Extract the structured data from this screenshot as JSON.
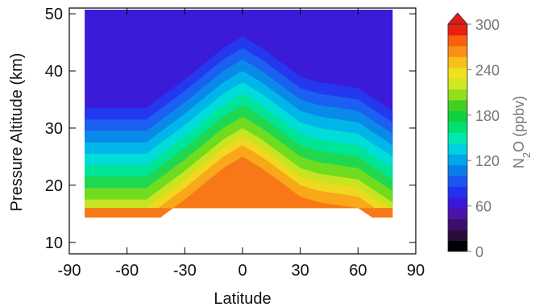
{
  "chart_data": {
    "type": "heatmap",
    "title": "",
    "xlabel": "Latitude",
    "ylabel": "Pressure Altitude (km)",
    "xlim": [
      -90,
      90
    ],
    "ylim": [
      8,
      51
    ],
    "xticks": [
      -90,
      -60,
      -30,
      0,
      30,
      60,
      90
    ],
    "yticks": [
      10,
      20,
      30,
      40,
      50
    ],
    "data_extent": {
      "lat": [
        -82,
        78
      ],
      "alt": [
        16,
        51
      ]
    },
    "colorbar": {
      "label_main": "N",
      "label_sub": "2",
      "label_rest": "O (ppbv)",
      "range": [
        0,
        300
      ],
      "ticks": [
        0,
        60,
        120,
        180,
        240,
        300
      ],
      "max_arrow": true,
      "colors": [
        "#000000",
        "#2a0d3a",
        "#3b0f6e",
        "#4a12a8",
        "#3a18d8",
        "#2430f0",
        "#1b55f0",
        "#0c7de8",
        "#00a8e8",
        "#00d0e0",
        "#00e8b0",
        "#00e070",
        "#10d040",
        "#40d020",
        "#90e020",
        "#d0e820",
        "#f0e020",
        "#f8c018",
        "#f89018",
        "#f86010",
        "#e82010"
      ]
    },
    "tropopause_km": [
      {
        "lat": -82,
        "alt": 33.5
      },
      {
        "lat": -50,
        "alt": 33.5
      },
      {
        "lat": -30,
        "alt": 38.5
      },
      {
        "lat": -10,
        "alt": 44
      },
      {
        "lat": 0,
        "alt": 46
      },
      {
        "lat": 10,
        "alt": 44
      },
      {
        "lat": 30,
        "alt": 39
      },
      {
        "lat": 40,
        "alt": 38
      },
      {
        "lat": 60,
        "alt": 37
      },
      {
        "lat": 78,
        "alt": 33
      }
    ]
  }
}
